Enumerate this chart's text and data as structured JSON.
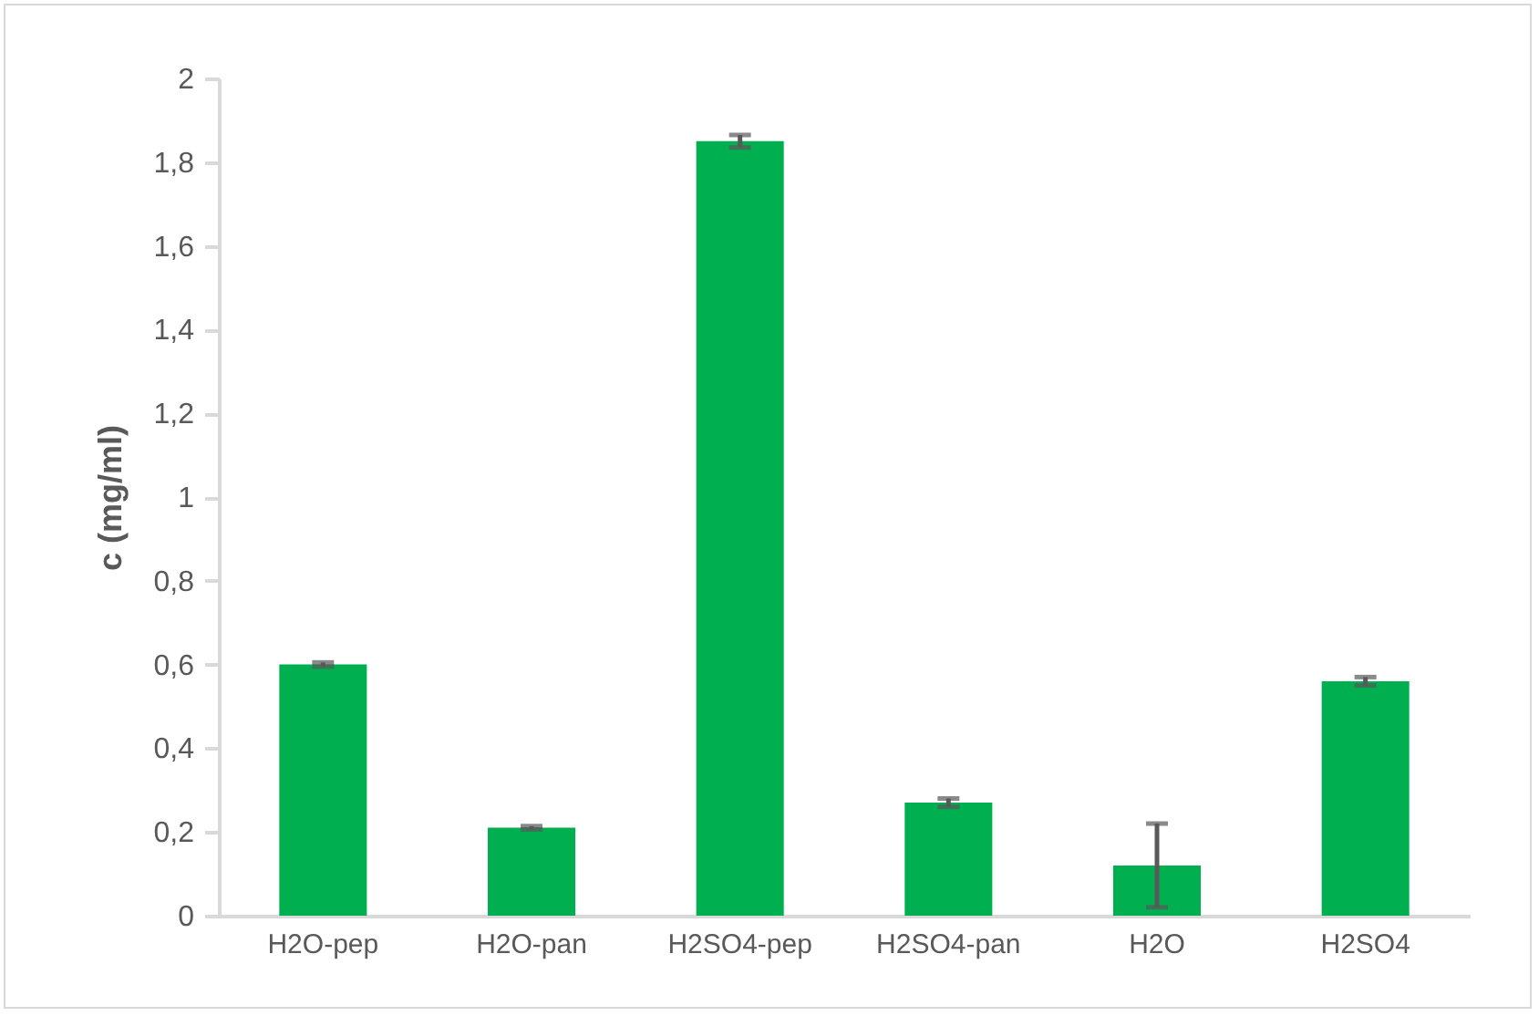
{
  "chart_data": {
    "type": "bar",
    "ylabel": "c (mg/ml)",
    "categories": [
      "H2O-pep",
      "H2O-pan",
      "H2SO4-pep",
      "H2SO4-pan",
      "H2O",
      "H2SO4"
    ],
    "values": [
      0.6,
      0.21,
      1.85,
      0.27,
      0.12,
      0.56
    ],
    "errors": [
      0.005,
      0.004,
      0.015,
      0.01,
      0.1,
      0.01
    ],
    "color": "#00b050",
    "ylim": [
      0,
      2
    ],
    "yticks": [
      0,
      {
        "value": 0.2,
        "label": "0,2"
      },
      {
        "value": 0.4,
        "label": "0,4"
      },
      {
        "value": 0.6,
        "label": "0,6"
      },
      {
        "value": 0.8,
        "label": "0,8"
      },
      1,
      {
        "value": 1.2,
        "label": "1,2"
      },
      {
        "value": 1.4,
        "label": "1,4"
      },
      {
        "value": 1.6,
        "label": "1,6"
      },
      {
        "value": 1.8,
        "label": "1,8"
      },
      2
    ],
    "grid": false
  }
}
